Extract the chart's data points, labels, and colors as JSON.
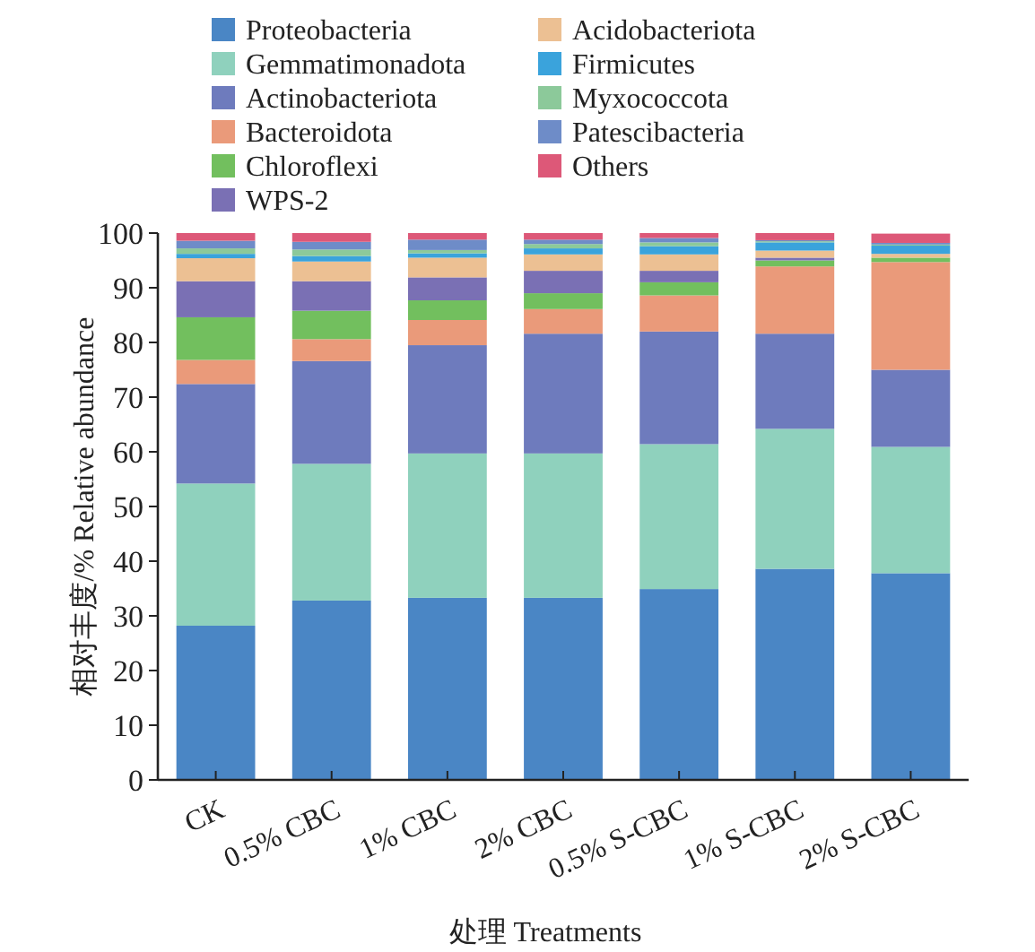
{
  "chart_data": {
    "type": "bar",
    "stacked": true,
    "xlabel": "处理 Treatments",
    "ylabel": "相对丰度/% Relative abundance",
    "categories": [
      "CK",
      "0.5% CBC",
      "1% CBC",
      "2% CBC",
      "0.5% S-CBC",
      "1% S-CBC",
      "2% S-CBC"
    ],
    "ylim": [
      0,
      100
    ],
    "yticks": [
      0,
      10,
      20,
      30,
      40,
      50,
      60,
      70,
      80,
      90,
      100
    ],
    "grid": false,
    "legend": "top",
    "series": [
      {
        "name": "Proteobacteria",
        "color": "#4a86c5",
        "values": [
          28.2,
          32.8,
          33.3,
          33.3,
          34.9,
          38.6,
          37.8
        ]
      },
      {
        "name": "Gemmatimonadota",
        "color": "#8fd1bd",
        "values": [
          26.0,
          25.0,
          26.4,
          26.4,
          26.5,
          25.6,
          23.1
        ]
      },
      {
        "name": "Actinobacteriota",
        "color": "#6e7bbd",
        "values": [
          18.2,
          18.8,
          19.8,
          21.9,
          20.6,
          17.4,
          14.1
        ]
      },
      {
        "name": "Bacteroidota",
        "color": "#ea9a7a",
        "values": [
          4.4,
          4.0,
          4.6,
          4.5,
          6.6,
          12.3,
          19.7
        ]
      },
      {
        "name": "Chloroflexi",
        "color": "#72bf5e",
        "values": [
          7.8,
          5.2,
          3.6,
          2.9,
          2.4,
          1.1,
          0.8
        ]
      },
      {
        "name": "WPS-2",
        "color": "#7a70b4",
        "values": [
          6.6,
          5.4,
          4.2,
          4.1,
          2.1,
          0.5,
          null
        ]
      },
      {
        "name": "Acidobacteriota",
        "color": "#ecc093",
        "values": [
          4.2,
          3.6,
          3.6,
          3.0,
          3.0,
          1.3,
          0.7
        ]
      },
      {
        "name": "Firmicutes",
        "color": "#3aa3dc",
        "values": [
          0.8,
          1.0,
          0.8,
          1.1,
          1.5,
          1.5,
          1.5
        ]
      },
      {
        "name": "Myxococcota",
        "color": "#8cc99a",
        "values": [
          1.0,
          1.2,
          0.6,
          0.8,
          0.7,
          0.2,
          0.2
        ]
      },
      {
        "name": "Patescibacteria",
        "color": "#6e8cc8",
        "values": [
          1.4,
          1.4,
          1.9,
          0.8,
          0.8,
          0.2,
          0.3
        ]
      },
      {
        "name": "Others",
        "color": "#dd5878",
        "values": [
          1.4,
          1.6,
          1.2,
          1.2,
          0.9,
          1.3,
          1.7
        ]
      }
    ]
  }
}
